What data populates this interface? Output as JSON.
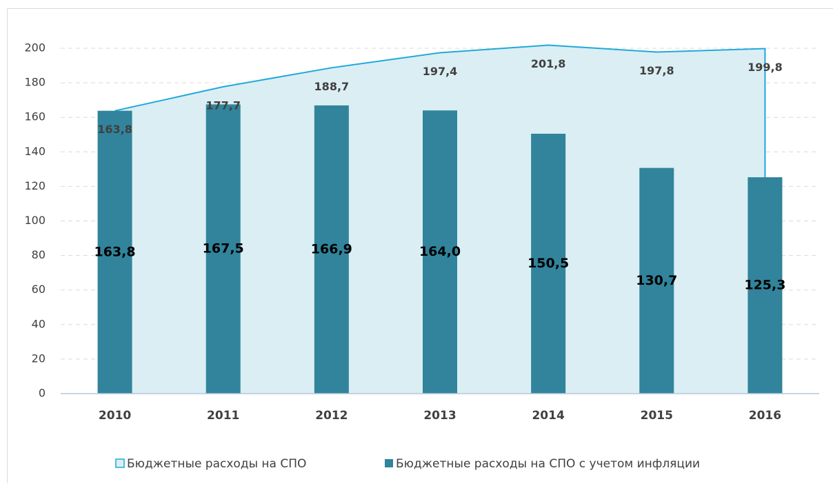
{
  "chart_data": {
    "type": "bar",
    "categories": [
      "2010",
      "2011",
      "2012",
      "2013",
      "2014",
      "2015",
      "2016"
    ],
    "series": [
      {
        "name": "Бюджетные расходы на СПО",
        "type": "area",
        "color": "#1fa9da",
        "fill": "#dbeef4",
        "values": [
          163.8,
          177.7,
          188.7,
          197.4,
          201.8,
          197.8,
          199.8
        ],
        "value_labels": [
          "163,8",
          "177,7",
          "188,7",
          "197,4",
          "201,8",
          "197,8",
          "199,8"
        ]
      },
      {
        "name": "Бюджетные расходы на СПО с учетом инфляции",
        "type": "bar",
        "color": "#31849b",
        "values": [
          163.8,
          167.5,
          166.9,
          164.0,
          150.5,
          130.7,
          125.3
        ],
        "value_labels": [
          "163,8",
          "167,5",
          "166,9",
          "164,0",
          "150,5",
          "130,7",
          "125,3"
        ]
      }
    ],
    "ylim": [
      0,
      200
    ],
    "yticks": [
      0,
      20,
      40,
      60,
      80,
      100,
      120,
      140,
      160,
      180,
      200
    ],
    "grid": true,
    "legend": "bottom"
  }
}
